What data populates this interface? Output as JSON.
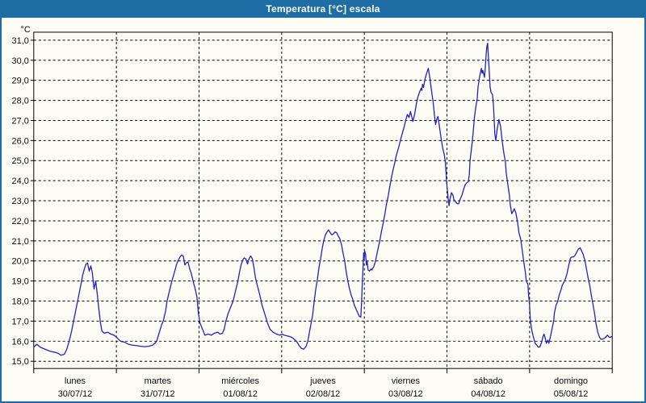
{
  "window": {
    "title": "Temperatura [°C] escala"
  },
  "colors": {
    "titlebar_bg": "#1e6da4",
    "titlebar_text": "#ffffff",
    "window_border": "#1e6da4",
    "plot_bg": "#fcfcf4",
    "grid": "#000000",
    "curve": "#2222c0"
  },
  "y_axis": {
    "unit_label": "°C",
    "min": 15,
    "max": 31,
    "step": 1,
    "tick_labels": [
      "31,0",
      "30,0",
      "29,0",
      "28,0",
      "27,0",
      "26,0",
      "25,0",
      "24,0",
      "23,0",
      "22,0",
      "21,0",
      "20,0",
      "19,0",
      "18,0",
      "17,0",
      "16,0",
      "15,0"
    ]
  },
  "x_axis": {
    "days": [
      {
        "name": "lunes",
        "date": "30/07/12"
      },
      {
        "name": "martes",
        "date": "31/07/12"
      },
      {
        "name": "miércoles",
        "date": "01/08/12"
      },
      {
        "name": "jueves",
        "date": "02/08/12"
      },
      {
        "name": "viernes",
        "date": "03/08/12"
      },
      {
        "name": "sábado",
        "date": "04/08/12"
      },
      {
        "name": "domingo",
        "date": "05/08/12"
      }
    ]
  },
  "chart_data": {
    "type": "line",
    "title": "Temperatura [°C] escala",
    "series_name": "Temperatura",
    "x_unit": "hours since lunes 30/07/12 00:00",
    "x_range": [
      0,
      168
    ],
    "ylabel": "°C",
    "ylim": [
      15,
      31
    ],
    "grid": "dashed",
    "legend_position": "none",
    "points": [
      [
        0,
        15.7
      ],
      [
        0.9,
        15.85
      ],
      [
        1.9,
        15.7
      ],
      [
        3.3,
        15.6
      ],
      [
        4.7,
        15.5
      ],
      [
        6.1,
        15.45
      ],
      [
        7,
        15.4
      ],
      [
        7.9,
        15.3
      ],
      [
        8.9,
        15.35
      ],
      [
        9.6,
        15.6
      ],
      [
        10.3,
        16
      ],
      [
        11,
        16.5
      ],
      [
        11.7,
        17.1
      ],
      [
        12.4,
        17.7
      ],
      [
        13.1,
        18.3
      ],
      [
        13.8,
        18.9
      ],
      [
        14.2,
        19.3
      ],
      [
        14.7,
        19.6
      ],
      [
        15.2,
        19.85
      ],
      [
        15.6,
        19.9
      ],
      [
        16.1,
        19.5
      ],
      [
        16.6,
        19.75
      ],
      [
        17,
        19.4
      ],
      [
        17.5,
        18.6
      ],
      [
        18,
        19
      ],
      [
        18.4,
        18.4
      ],
      [
        18.9,
        17.6
      ],
      [
        19.4,
        16.9
      ],
      [
        19.8,
        16.5
      ],
      [
        20.5,
        16.4
      ],
      [
        21.5,
        16.45
      ],
      [
        22.4,
        16.35
      ],
      [
        23.3,
        16.3
      ],
      [
        24,
        16.2
      ],
      [
        25.2,
        16
      ],
      [
        26.4,
        15.95
      ],
      [
        27.5,
        15.85
      ],
      [
        28.7,
        15.8
      ],
      [
        29.9,
        15.78
      ],
      [
        31,
        15.75
      ],
      [
        32.2,
        15.73
      ],
      [
        33.4,
        15.75
      ],
      [
        34.5,
        15.8
      ],
      [
        35.2,
        15.9
      ],
      [
        35.7,
        16
      ],
      [
        36.4,
        16.4
      ],
      [
        37.1,
        16.8
      ],
      [
        37.6,
        17
      ],
      [
        38.3,
        17.5
      ],
      [
        38.7,
        18
      ],
      [
        39.4,
        18.5
      ],
      [
        40.1,
        19
      ],
      [
        40.8,
        19.4
      ],
      [
        41.5,
        19.85
      ],
      [
        42,
        20.05
      ],
      [
        42.5,
        20.2
      ],
      [
        42.9,
        20.3
      ],
      [
        43.4,
        20.25
      ],
      [
        43.9,
        19.8
      ],
      [
        44.3,
        19.9
      ],
      [
        44.8,
        19.95
      ],
      [
        45.3,
        19.6
      ],
      [
        45.7,
        19.4
      ],
      [
        46.4,
        18.9
      ],
      [
        46.9,
        18.6
      ],
      [
        47.4,
        18.2
      ],
      [
        47.8,
        17.4
      ],
      [
        48.1,
        17.1
      ],
      [
        48.3,
        16.9
      ],
      [
        49,
        16.6
      ],
      [
        49.7,
        16.3
      ],
      [
        50.6,
        16.35
      ],
      [
        51.6,
        16.3
      ],
      [
        52.5,
        16.4
      ],
      [
        53.4,
        16.45
      ],
      [
        54.1,
        16.35
      ],
      [
        54.8,
        16.4
      ],
      [
        55.3,
        16.6
      ],
      [
        55.8,
        17
      ],
      [
        56.5,
        17.4
      ],
      [
        57.2,
        17.7
      ],
      [
        57.9,
        18
      ],
      [
        58.6,
        18.5
      ],
      [
        59.3,
        19
      ],
      [
        59.7,
        19.4
      ],
      [
        60.2,
        19.8
      ],
      [
        60.7,
        20.05
      ],
      [
        61.1,
        20.15
      ],
      [
        61.6,
        20.1
      ],
      [
        62.1,
        19.85
      ],
      [
        62.5,
        20.1
      ],
      [
        63,
        20.25
      ],
      [
        63.5,
        20.1
      ],
      [
        63.9,
        19.7
      ],
      [
        64.4,
        19.15
      ],
      [
        64.9,
        18.8
      ],
      [
        65.6,
        18.35
      ],
      [
        66.3,
        17.8
      ],
      [
        67.2,
        17.3
      ],
      [
        67.9,
        16.9
      ],
      [
        68.6,
        16.6
      ],
      [
        69.5,
        16.45
      ],
      [
        70.5,
        16.35
      ],
      [
        71.4,
        16.3
      ],
      [
        72.1,
        16.35
      ],
      [
        72.8,
        16.3
      ],
      [
        74,
        16.25
      ],
      [
        74.9,
        16.2
      ],
      [
        75.6,
        16.1
      ],
      [
        76.3,
        16
      ],
      [
        77,
        15.8
      ],
      [
        77.7,
        15.65
      ],
      [
        78.4,
        15.6
      ],
      [
        79.1,
        15.75
      ],
      [
        79.6,
        16
      ],
      [
        80,
        16.4
      ],
      [
        80.5,
        16.85
      ],
      [
        81,
        17.3
      ],
      [
        81.4,
        17.95
      ],
      [
        81.9,
        18.6
      ],
      [
        82.4,
        19.1
      ],
      [
        82.8,
        19.65
      ],
      [
        83.3,
        20.1
      ],
      [
        83.8,
        20.65
      ],
      [
        84.2,
        21
      ],
      [
        84.7,
        21.3
      ],
      [
        85.2,
        21.45
      ],
      [
        85.6,
        21.55
      ],
      [
        86.1,
        21.4
      ],
      [
        86.6,
        21.3
      ],
      [
        87,
        21.35
      ],
      [
        87.5,
        21.45
      ],
      [
        88,
        21.4
      ],
      [
        88.4,
        21.25
      ],
      [
        88.9,
        21.1
      ],
      [
        89.4,
        20.8
      ],
      [
        89.8,
        20.4
      ],
      [
        90.3,
        20
      ],
      [
        90.8,
        19.4
      ],
      [
        91.2,
        19
      ],
      [
        91.7,
        18.6
      ],
      [
        92.2,
        18.3
      ],
      [
        92.6,
        18.1
      ],
      [
        93.1,
        17.8
      ],
      [
        93.6,
        17.6
      ],
      [
        94,
        17.45
      ],
      [
        94.5,
        17.25
      ],
      [
        95,
        17.2
      ],
      [
        95.2,
        17.9
      ],
      [
        95.4,
        18.9
      ],
      [
        95.7,
        19.9
      ],
      [
        95.8,
        20.4
      ],
      [
        96,
        20.15
      ],
      [
        96.1,
        20.5
      ],
      [
        96.4,
        20.3
      ],
      [
        96.6,
        19.8
      ],
      [
        96.8,
        20
      ],
      [
        97.1,
        19.55
      ],
      [
        97.5,
        19.5
      ],
      [
        98,
        19.6
      ],
      [
        98.2,
        19.55
      ],
      [
        98.7,
        19.7
      ],
      [
        99.2,
        19.95
      ],
      [
        99.6,
        20.3
      ],
      [
        100.1,
        20.7
      ],
      [
        100.6,
        21.1
      ],
      [
        101,
        21.5
      ],
      [
        101.5,
        21.9
      ],
      [
        102,
        22.35
      ],
      [
        102.4,
        22.8
      ],
      [
        102.9,
        23.2
      ],
      [
        103.4,
        23.7
      ],
      [
        103.8,
        24.1
      ],
      [
        104.3,
        24.5
      ],
      [
        104.8,
        24.85
      ],
      [
        105.2,
        25.2
      ],
      [
        105.7,
        25.5
      ],
      [
        106.2,
        25.8
      ],
      [
        106.6,
        26.1
      ],
      [
        107.1,
        26.4
      ],
      [
        107.6,
        26.7
      ],
      [
        108,
        27
      ],
      [
        108.5,
        27.3
      ],
      [
        109,
        27.15
      ],
      [
        109.4,
        27.45
      ],
      [
        109.9,
        27.1
      ],
      [
        110.1,
        26.95
      ],
      [
        110.6,
        27.3
      ],
      [
        111.1,
        27.8
      ],
      [
        111.5,
        28.15
      ],
      [
        112,
        28.4
      ],
      [
        112.5,
        28.6
      ],
      [
        112.7,
        28.5
      ],
      [
        112.9,
        28.8
      ],
      [
        113.2,
        28.65
      ],
      [
        113.6,
        29.05
      ],
      [
        114.1,
        29.35
      ],
      [
        114.6,
        29.6
      ],
      [
        115,
        29.15
      ],
      [
        115.5,
        28.5
      ],
      [
        116,
        27.9
      ],
      [
        116.4,
        27.2
      ],
      [
        116.7,
        26.8
      ],
      [
        117.1,
        27.1
      ],
      [
        117.4,
        27.2
      ],
      [
        117.8,
        26.7
      ],
      [
        118.3,
        26.1
      ],
      [
        118.8,
        25.6
      ],
      [
        119.2,
        25.3
      ],
      [
        119.5,
        25
      ],
      [
        119.7,
        24.5
      ],
      [
        119.9,
        23.9
      ],
      [
        120.2,
        23.4
      ],
      [
        120.4,
        23
      ],
      [
        120.6,
        22.75
      ],
      [
        120.9,
        23.1
      ],
      [
        121.3,
        23.4
      ],
      [
        121.8,
        23.25
      ],
      [
        122,
        23.05
      ],
      [
        122.5,
        22.95
      ],
      [
        123,
        22.85
      ],
      [
        123.4,
        22.85
      ],
      [
        123.9,
        23.1
      ],
      [
        124.4,
        23.3
      ],
      [
        124.8,
        23.55
      ],
      [
        125.3,
        23.8
      ],
      [
        125.8,
        23.9
      ],
      [
        126.2,
        23.95
      ],
      [
        126.5,
        24.3
      ],
      [
        126.7,
        25
      ],
      [
        127.2,
        25.7
      ],
      [
        127.6,
        26.4
      ],
      [
        127.9,
        27
      ],
      [
        128.3,
        27.6
      ],
      [
        128.8,
        28.1
      ],
      [
        129,
        28.65
      ],
      [
        129.5,
        29.2
      ],
      [
        130,
        29.6
      ],
      [
        130.2,
        29.35
      ],
      [
        130.4,
        29.5
      ],
      [
        130.7,
        29.3
      ],
      [
        130.9,
        29.15
      ],
      [
        131.1,
        29.6
      ],
      [
        131.4,
        30.3
      ],
      [
        131.6,
        30.7
      ],
      [
        131.8,
        30.85
      ],
      [
        132.1,
        30
      ],
      [
        132.3,
        29.4
      ],
      [
        132.5,
        28.7
      ],
      [
        132.8,
        28.4
      ],
      [
        133.2,
        28.3
      ],
      [
        133.5,
        27.8
      ],
      [
        133.7,
        27.1
      ],
      [
        133.9,
        26.3
      ],
      [
        134.2,
        26
      ],
      [
        134.6,
        26.6
      ],
      [
        135.1,
        27.05
      ],
      [
        135.6,
        26.7
      ],
      [
        136,
        26
      ],
      [
        136.5,
        25.4
      ],
      [
        137,
        24.9
      ],
      [
        137.2,
        24.4
      ],
      [
        137.7,
        23.8
      ],
      [
        138.1,
        23.3
      ],
      [
        138.4,
        22.8
      ],
      [
        138.8,
        22.35
      ],
      [
        139.3,
        22.5
      ],
      [
        139.5,
        22.6
      ],
      [
        140,
        22.4
      ],
      [
        140.5,
        21.95
      ],
      [
        140.9,
        21.4
      ],
      [
        141.4,
        21.1
      ],
      [
        141.9,
        20.5
      ],
      [
        142.3,
        19.95
      ],
      [
        142.8,
        19.4
      ],
      [
        143,
        19.05
      ],
      [
        143.3,
        18.9
      ],
      [
        143.5,
        18.85
      ],
      [
        143.7,
        18.3
      ],
      [
        144,
        17.8
      ],
      [
        144.2,
        17.1
      ],
      [
        144.4,
        16.8
      ],
      [
        144.7,
        16.5
      ],
      [
        145.1,
        16.2
      ],
      [
        145.6,
        15.9
      ],
      [
        146.1,
        15.8
      ],
      [
        146.5,
        15.7
      ],
      [
        147,
        15.72
      ],
      [
        147.5,
        15.95
      ],
      [
        147.9,
        16.25
      ],
      [
        148.2,
        16.35
      ],
      [
        148.6,
        16.1
      ],
      [
        148.9,
        15.9
      ],
      [
        149.3,
        16.05
      ],
      [
        149.6,
        15.9
      ],
      [
        150,
        16.2
      ],
      [
        150.5,
        16.6
      ],
      [
        151,
        17
      ],
      [
        151.2,
        17.4
      ],
      [
        151.7,
        17.8
      ],
      [
        152.1,
        17.95
      ],
      [
        152.6,
        18.3
      ],
      [
        153.1,
        18.55
      ],
      [
        153.5,
        18.8
      ],
      [
        154,
        18.95
      ],
      [
        154.5,
        19.15
      ],
      [
        154.9,
        19.4
      ],
      [
        155.4,
        19.8
      ],
      [
        155.9,
        20.15
      ],
      [
        156.3,
        20.2
      ],
      [
        156.8,
        20.2
      ],
      [
        157.3,
        20.3
      ],
      [
        157.7,
        20.45
      ],
      [
        158.2,
        20.6
      ],
      [
        158.7,
        20.65
      ],
      [
        159.1,
        20.5
      ],
      [
        159.6,
        20.3
      ],
      [
        160.1,
        20
      ],
      [
        160.5,
        19.6
      ],
      [
        161,
        19.15
      ],
      [
        161.5,
        18.75
      ],
      [
        161.9,
        18.3
      ],
      [
        162.4,
        17.85
      ],
      [
        162.9,
        17.35
      ],
      [
        163.3,
        16.85
      ],
      [
        163.8,
        16.45
      ],
      [
        164.3,
        16.2
      ],
      [
        164.7,
        16.1
      ],
      [
        165.2,
        16.1
      ],
      [
        165.7,
        16.15
      ],
      [
        166.1,
        16.2
      ],
      [
        166.6,
        16.3
      ],
      [
        167.1,
        16.2
      ],
      [
        167.5,
        16.2
      ],
      [
        168,
        16.25
      ]
    ]
  }
}
